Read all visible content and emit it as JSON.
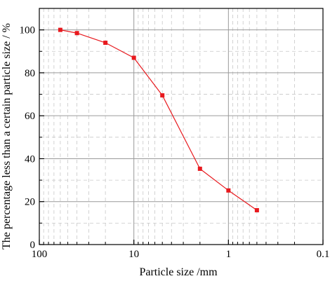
{
  "chart_data": {
    "type": "line",
    "xlabel": "Particle size /mm",
    "ylabel": "The percentage less than a certain particle size / %",
    "x_scale": "log",
    "x_reversed": true,
    "xlim": [
      100,
      0.1
    ],
    "ylim": [
      0,
      110
    ],
    "x_ticks": [
      100,
      10,
      1,
      0.1
    ],
    "x_tick_labels": [
      "100",
      "10",
      "1",
      "0.1"
    ],
    "y_ticks": [
      0,
      20,
      40,
      60,
      80,
      100
    ],
    "y_tick_labels": [
      "0",
      "20",
      "40",
      "60",
      "80",
      "100"
    ],
    "grid": true,
    "legend": "none",
    "series": [
      {
        "color": "#e8191e",
        "marker": "square",
        "x": [
          60,
          40,
          20,
          10,
          5,
          2,
          1,
          0.5
        ],
        "y": [
          100,
          98.5,
          94,
          87,
          69.5,
          35.3,
          25.2,
          16
        ]
      }
    ]
  }
}
